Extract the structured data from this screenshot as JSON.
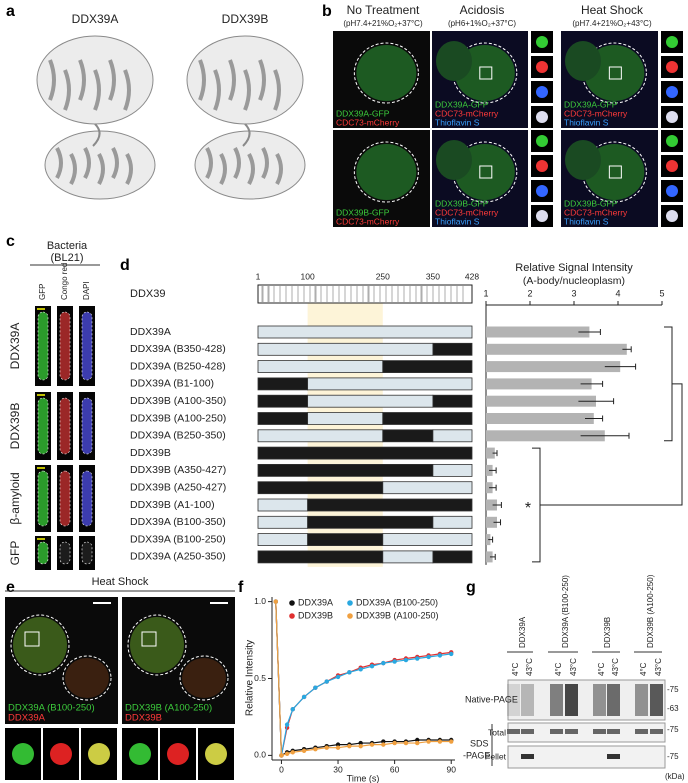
{
  "panel_labels": [
    "a",
    "b",
    "c",
    "d",
    "e",
    "f",
    "g"
  ],
  "panel_a": {
    "structures": [
      "DDX39A",
      "DDX39B"
    ]
  },
  "panel_b": {
    "columns": [
      {
        "title": "No Treatment",
        "condition": "(pH7.4+21%O₂+37°C)"
      },
      {
        "title": "Acidosis",
        "condition": "(pH6+1%O₂+37°C)"
      },
      {
        "title": "Heat Shock",
        "condition": "(pH7.4+21%O₂+43°C)"
      }
    ],
    "image_labels": [
      [
        "DDX39A-GFP",
        "CDC73-mCherry"
      ],
      [
        "DDX39A-GFP",
        "CDC73-mCherry",
        "Thioflavin S"
      ],
      [
        "DDX39A-GFP",
        "CDC73-mCherry",
        "Thioflavin S"
      ],
      [
        "DDX39B-GFP",
        "CDC73-mCherry"
      ],
      [
        "DDX39B-GFP",
        "CDC73-mCherry",
        "Thioflavin S"
      ],
      [
        "DDX39B-GFP",
        "CDC73-mCherry",
        "Thioflavin S"
      ]
    ]
  },
  "panel_c": {
    "title": "Bacteria",
    "subtitle": "(BL21)",
    "stains": [
      "GFP",
      "Congo red",
      "DAPI"
    ],
    "samples": [
      "DDX39A",
      "DDX39B",
      "β-amyloid",
      "GFP"
    ]
  },
  "domain_map": {
    "name": "DDX39",
    "lim": [
      1,
      428
    ],
    "ticks": [
      1,
      100,
      250,
      350,
      428
    ]
  },
  "panel_e": {
    "title": "Heat Shock",
    "image_labels": [
      [
        "DDX39A (B100-250)",
        "DDX39A"
      ],
      [
        "DDX39B (A100-250)",
        "DDX39B"
      ]
    ]
  },
  "panel_g": {
    "samples": [
      "DDX39A",
      "DDX39A (B100-250)",
      "DDX39B",
      "DDX39B (A100-250)"
    ],
    "temperatures": [
      "4°C",
      "43°C",
      "4°C",
      "43°C",
      "4°C",
      "43°C",
      "4°C",
      "43°C"
    ],
    "native": "Native-PAGE",
    "native_markers": [
      "-75",
      "-63"
    ],
    "sds": [
      "SDS",
      "-PAGE"
    ],
    "sds_rows": [
      "Total",
      "Pellet"
    ],
    "sds_markers": [
      "-75",
      "-75"
    ],
    "unit": "(kDa)"
  },
  "chart_data": [
    {
      "type": "hbar",
      "title": "Relative Signal Intensity",
      "subtitle": "(A-body/nucleoplasm)",
      "annotation": "*",
      "color": "#b3b3b3",
      "categories": [
        "DDX39A",
        "DDX39A (B350-428)",
        "DDX39A (B250-428)",
        "DDX39A (B1-100)",
        "DDX39B (A100-350)",
        "DDX39B (A100-250)",
        "DDX39A (B250-350)",
        "DDX39B",
        "DDX39B (A350-427)",
        "DDX39B (A250-427)",
        "DDX39B (A1-100)",
        "DDX39A (B100-350)",
        "DDX39A (B100-250)",
        "DDX39A (A250-350)"
      ],
      "values": [
        3.35,
        4.2,
        4.05,
        3.4,
        3.5,
        3.45,
        3.7,
        1.2,
        1.15,
        1.15,
        1.25,
        1.25,
        1.1,
        1.15
      ],
      "errors": [
        0.25,
        0.1,
        0.35,
        0.25,
        0.4,
        0.2,
        0.55,
        0.05,
        0.08,
        0.08,
        0.1,
        0.08,
        0.05,
        0.06
      ],
      "xlim": [
        1,
        5
      ],
      "xticks": [
        1,
        2,
        3,
        4,
        5
      ],
      "segments": [
        [
          {
            "from": 1,
            "to": 428,
            "color": "#dce6ec"
          }
        ],
        [
          {
            "from": 1,
            "to": 350,
            "color": "#dce6ec"
          },
          {
            "from": 350,
            "to": 428,
            "color": "#1a1a1a"
          }
        ],
        [
          {
            "from": 1,
            "to": 250,
            "color": "#dce6ec"
          },
          {
            "from": 250,
            "to": 428,
            "color": "#1a1a1a"
          }
        ],
        [
          {
            "from": 1,
            "to": 100,
            "color": "#1a1a1a"
          },
          {
            "from": 100,
            "to": 428,
            "color": "#dce6ec"
          }
        ],
        [
          {
            "from": 1,
            "to": 100,
            "color": "#1a1a1a"
          },
          {
            "from": 100,
            "to": 350,
            "color": "#dce6ec"
          },
          {
            "from": 350,
            "to": 428,
            "color": "#1a1a1a"
          }
        ],
        [
          {
            "from": 1,
            "to": 100,
            "color": "#1a1a1a"
          },
          {
            "from": 100,
            "to": 250,
            "color": "#dce6ec"
          },
          {
            "from": 250,
            "to": 428,
            "color": "#1a1a1a"
          }
        ],
        [
          {
            "from": 1,
            "to": 250,
            "color": "#dce6ec"
          },
          {
            "from": 250,
            "to": 350,
            "color": "#1a1a1a"
          },
          {
            "from": 350,
            "to": 428,
            "color": "#dce6ec"
          }
        ],
        [
          {
            "from": 1,
            "to": 428,
            "color": "#1a1a1a"
          }
        ],
        [
          {
            "from": 1,
            "to": 350,
            "color": "#1a1a1a"
          },
          {
            "from": 350,
            "to": 428,
            "color": "#dce6ec"
          }
        ],
        [
          {
            "from": 1,
            "to": 250,
            "color": "#1a1a1a"
          },
          {
            "from": 250,
            "to": 428,
            "color": "#dce6ec"
          }
        ],
        [
          {
            "from": 1,
            "to": 100,
            "color": "#dce6ec"
          },
          {
            "from": 100,
            "to": 428,
            "color": "#1a1a1a"
          }
        ],
        [
          {
            "from": 1,
            "to": 100,
            "color": "#dce6ec"
          },
          {
            "from": 100,
            "to": 350,
            "color": "#1a1a1a"
          },
          {
            "from": 350,
            "to": 428,
            "color": "#dce6ec"
          }
        ],
        [
          {
            "from": 1,
            "to": 100,
            "color": "#dce6ec"
          },
          {
            "from": 100,
            "to": 250,
            "color": "#1a1a1a"
          },
          {
            "from": 250,
            "to": 428,
            "color": "#dce6ec"
          }
        ],
        [
          {
            "from": 1,
            "to": 250,
            "color": "#1a1a1a"
          },
          {
            "from": 250,
            "to": 350,
            "color": "#dce6ec"
          },
          {
            "from": 350,
            "to": 428,
            "color": "#1a1a1a"
          }
        ]
      ]
    },
    {
      "type": "line",
      "xlabel": "Time (s)",
      "ylabel": "Relative Intensity",
      "x": [
        -3,
        0,
        3,
        6,
        12,
        18,
        24,
        30,
        36,
        42,
        48,
        54,
        60,
        66,
        72,
        78,
        84,
        90
      ],
      "xlim": [
        -5,
        92
      ],
      "xticks": [
        0,
        30,
        60,
        90
      ],
      "ylim": [
        -0.03,
        1.03
      ],
      "yticks": [
        {
          "value": 0,
          "label": "0.0"
        },
        {
          "value": 0.5,
          "label": "0.5"
        },
        {
          "value": 1,
          "label": "1.0"
        }
      ],
      "series": [
        {
          "name": "DDX39A",
          "color": "#111111",
          "values": [
            1.0,
            0.0,
            0.02,
            0.03,
            0.04,
            0.05,
            0.06,
            0.07,
            0.07,
            0.08,
            0.08,
            0.09,
            0.09,
            0.09,
            0.1,
            0.1,
            0.1,
            0.1
          ]
        },
        {
          "name": "DDX39B",
          "color": "#e03030",
          "values": [
            1.0,
            0.0,
            0.18,
            0.3,
            0.38,
            0.44,
            0.48,
            0.52,
            0.54,
            0.57,
            0.59,
            0.6,
            0.62,
            0.63,
            0.64,
            0.65,
            0.66,
            0.67
          ]
        },
        {
          "name": "DDX39A (B100-250)",
          "color": "#29a8e0",
          "values": [
            1.0,
            0.0,
            0.2,
            0.3,
            0.38,
            0.44,
            0.48,
            0.51,
            0.54,
            0.56,
            0.58,
            0.6,
            0.61,
            0.62,
            0.63,
            0.64,
            0.65,
            0.66
          ]
        },
        {
          "name": "DDX39B (A100-250)",
          "color": "#f0a040",
          "values": [
            1.0,
            0.0,
            0.01,
            0.02,
            0.03,
            0.04,
            0.05,
            0.05,
            0.06,
            0.06,
            0.07,
            0.07,
            0.08,
            0.08,
            0.08,
            0.09,
            0.09,
            0.09
          ]
        }
      ]
    }
  ]
}
